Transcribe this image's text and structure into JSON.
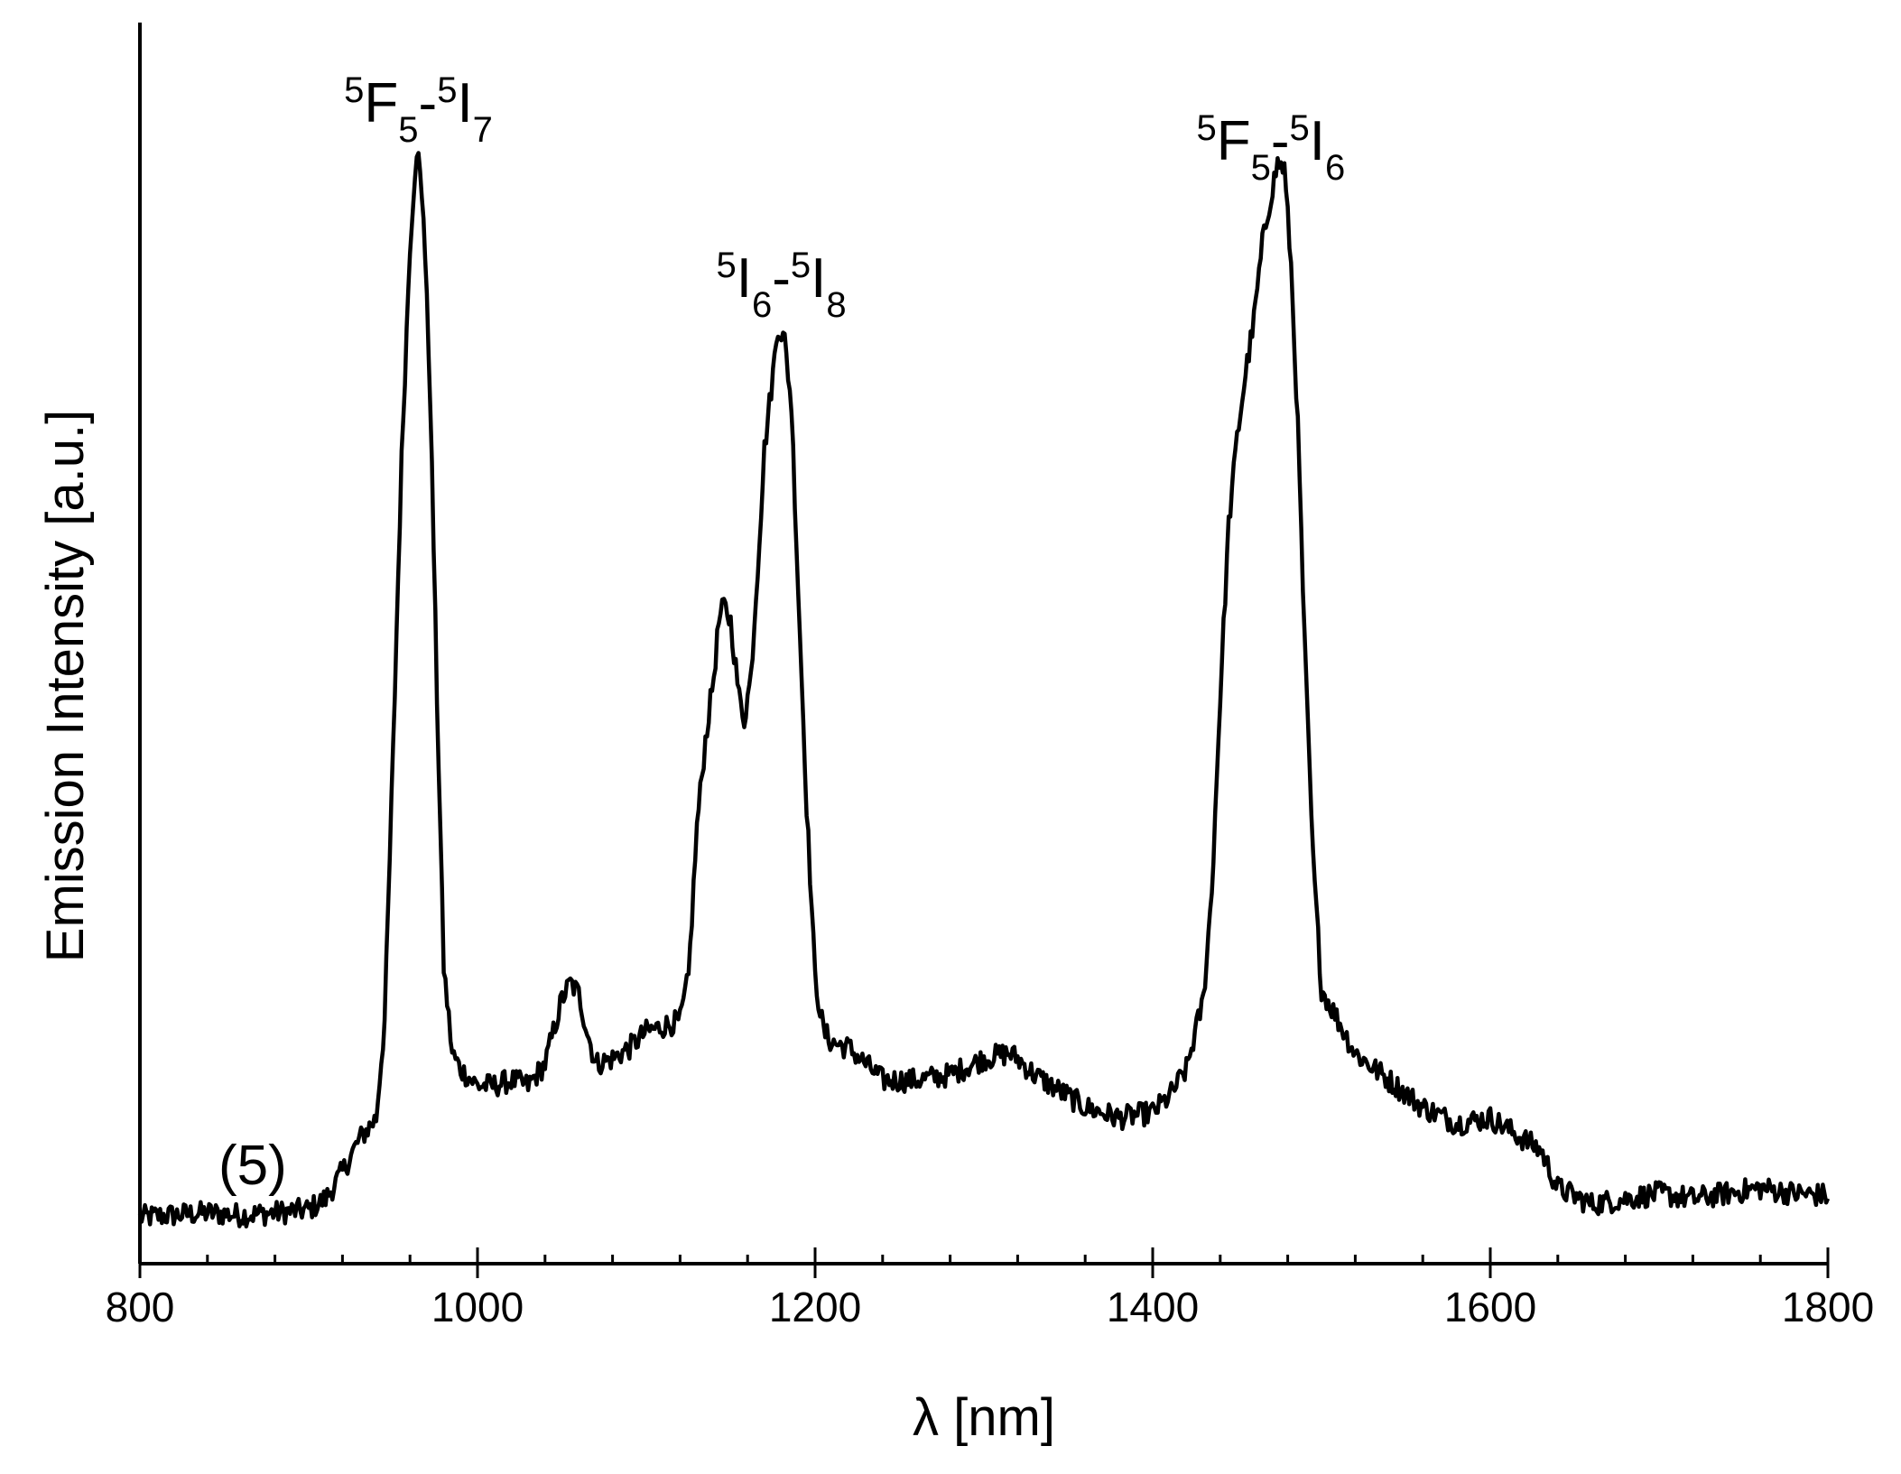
{
  "chart_data": {
    "type": "line",
    "xlabel": "λ [nm]",
    "ylabel": "Emission Intensity [a.u.]",
    "xlim": [
      800,
      1800
    ],
    "ylim": [
      0,
      1.0
    ],
    "x_ticks": [
      800,
      1000,
      1200,
      1400,
      1600,
      1800
    ],
    "x_tick_labels": [
      "800",
      "1000",
      "1200",
      "1400",
      "1600",
      "1800"
    ],
    "x_minor_step": 40,
    "y_ticks": [],
    "grid": false,
    "panel_label": "(5)",
    "annotations": [
      {
        "x": 965,
        "parts": [
          [
            "sup",
            "5"
          ],
          [
            "main",
            "F"
          ],
          [
            "sub",
            "5"
          ],
          [
            "main",
            "-"
          ],
          [
            "sup",
            "5"
          ],
          [
            "main",
            "I"
          ],
          [
            "sub",
            "7"
          ]
        ]
      },
      {
        "x": 1180,
        "parts": [
          [
            "sup",
            "5"
          ],
          [
            "main",
            "I"
          ],
          [
            "sub",
            "6"
          ],
          [
            "main",
            "-"
          ],
          [
            "sup",
            "5"
          ],
          [
            "main",
            "I"
          ],
          [
            "sub",
            "8"
          ]
        ]
      },
      {
        "x": 1470,
        "parts": [
          [
            "sup",
            "5"
          ],
          [
            "main",
            "F"
          ],
          [
            "sub",
            "5"
          ],
          [
            "main",
            "-"
          ],
          [
            "sup",
            "5"
          ],
          [
            "main",
            "I"
          ],
          [
            "sub",
            "6"
          ]
        ]
      }
    ],
    "series": [
      {
        "color": "#000000",
        "x": [
          800,
          820,
          840,
          860,
          880,
          900,
          910,
          920,
          930,
          940,
          945,
          950,
          955,
          960,
          963,
          965,
          968,
          972,
          976,
          980,
          985,
          990,
          1000,
          1010,
          1020,
          1030,
          1040,
          1050,
          1055,
          1060,
          1065,
          1070,
          1080,
          1090,
          1100,
          1110,
          1120,
          1125,
          1130,
          1135,
          1140,
          1143,
          1146,
          1150,
          1155,
          1158,
          1162,
          1166,
          1170,
          1175,
          1178,
          1182,
          1186,
          1190,
          1195,
          1200,
          1205,
          1210,
          1220,
          1230,
          1240,
          1260,
          1280,
          1300,
          1315,
          1320,
          1330,
          1340,
          1360,
          1380,
          1400,
          1410,
          1420,
          1430,
          1435,
          1440,
          1445,
          1450,
          1455,
          1460,
          1465,
          1470,
          1474,
          1478,
          1482,
          1486,
          1490,
          1495,
          1500,
          1510,
          1520,
          1540,
          1560,
          1580,
          1600,
          1610,
          1620,
          1630,
          1640,
          1660,
          1680,
          1700,
          1720,
          1740,
          1760,
          1780,
          1800
        ],
        "y": [
          0.018,
          0.02,
          0.022,
          0.02,
          0.022,
          0.025,
          0.035,
          0.06,
          0.09,
          0.11,
          0.2,
          0.45,
          0.72,
          0.92,
          0.99,
          1.0,
          0.95,
          0.78,
          0.5,
          0.25,
          0.17,
          0.155,
          0.14,
          0.14,
          0.145,
          0.14,
          0.16,
          0.22,
          0.235,
          0.225,
          0.19,
          0.16,
          0.165,
          0.175,
          0.19,
          0.195,
          0.2,
          0.24,
          0.38,
          0.46,
          0.52,
          0.57,
          0.585,
          0.57,
          0.5,
          0.48,
          0.52,
          0.62,
          0.73,
          0.8,
          0.845,
          0.83,
          0.77,
          0.6,
          0.4,
          0.24,
          0.19,
          0.18,
          0.175,
          0.16,
          0.145,
          0.145,
          0.15,
          0.165,
          0.17,
          0.165,
          0.15,
          0.14,
          0.12,
          0.11,
          0.115,
          0.13,
          0.155,
          0.22,
          0.32,
          0.5,
          0.66,
          0.74,
          0.8,
          0.85,
          0.92,
          0.965,
          0.995,
          0.99,
          0.9,
          0.75,
          0.55,
          0.35,
          0.23,
          0.2,
          0.17,
          0.145,
          0.12,
          0.105,
          0.11,
          0.1,
          0.09,
          0.08,
          0.045,
          0.03,
          0.035,
          0.04,
          0.035,
          0.04,
          0.045,
          0.04,
          0.038
        ]
      }
    ]
  }
}
